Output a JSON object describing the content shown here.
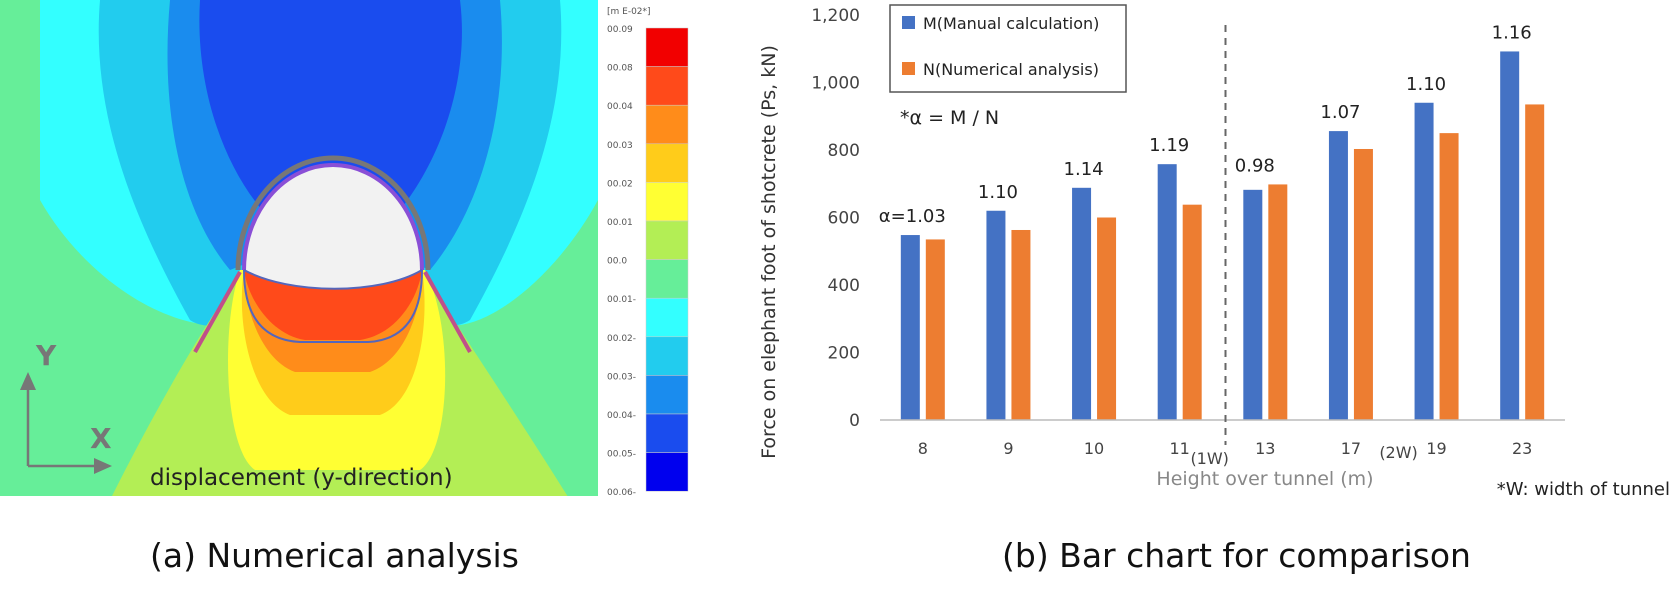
{
  "panel_a": {
    "caption": "(a) Numerical analysis",
    "overlay_label": "displacement (y-direction)",
    "axis_y_label": "Y",
    "axis_x_label": "X",
    "legend_header": "[m E-02*]",
    "legend_values": [
      "00.09",
      "00.08",
      "00.04",
      "00.03",
      "00.02",
      "00.01",
      "00.0",
      "00.01-",
      "00.02-",
      "00.03-",
      "00.04-",
      "00.05-",
      "00.06-"
    ],
    "legend_colors": [
      "#f20000",
      "#ff4a1a",
      "#ff8c1a",
      "#ffcc1a",
      "#ffff33",
      "#b3ee55",
      "#66ee99",
      "#33ffff",
      "#22ccee",
      "#1a8cee",
      "#1a4cee",
      "#0000ee"
    ],
    "colors": {
      "background_field": "#66ee99",
      "zone_cyan": "#33ffff",
      "zone_light_blue": "#22ccee",
      "zone_blue": "#1a8cee",
      "zone_dark_blue": "#1a4cee",
      "zone_red": "#ff4a1a",
      "zone_orange": "#ff8c1a",
      "zone_gold": "#ffcc1a",
      "zone_yellow": "#ffff33",
      "zone_yellow_green": "#b3ee55",
      "tunnel_lining": "#8a4fd6",
      "leg_pipe": "#c0508a"
    }
  },
  "panel_b": {
    "caption": "(b) Bar chart for comparison",
    "note_alpha": "*α = M / N",
    "note_width": "*W: width of tunnel",
    "chart_data": {
      "type": "bar",
      "categories": [
        "8",
        "9",
        "10",
        "11",
        "13",
        "17",
        "19",
        "23"
      ],
      "category_markers": [
        "",
        "",
        "",
        "(1W)",
        "",
        "",
        "(2W)",
        ""
      ],
      "series": [
        {
          "name": "M(Manual calculation)",
          "color": "#4472c4",
          "values": [
            548,
            620,
            688,
            758,
            682,
            856,
            940,
            1092
          ]
        },
        {
          "name": "N(Numerical analysis)",
          "color": "#ed7d31",
          "values": [
            535,
            563,
            600,
            638,
            698,
            803,
            850,
            935
          ]
        }
      ],
      "ratio_labels": [
        "α=1.03",
        "1.10",
        "1.14",
        "1.19",
        "0.98",
        "1.07",
        "1.10",
        "1.16"
      ],
      "ylabel": "Force on elephant foot of shotcrete (Ps, kN)",
      "xlabel": "Height over tunnel (m)",
      "ylim": [
        0,
        1200
      ],
      "yticks": [
        0,
        200,
        400,
        600,
        800,
        1000,
        1200
      ],
      "ytick_labels": [
        "0",
        "200",
        "400",
        "600",
        "800",
        "1,000",
        "1,200"
      ],
      "divider_after_category": 3,
      "grid": false,
      "legend_position": "top-left"
    }
  }
}
